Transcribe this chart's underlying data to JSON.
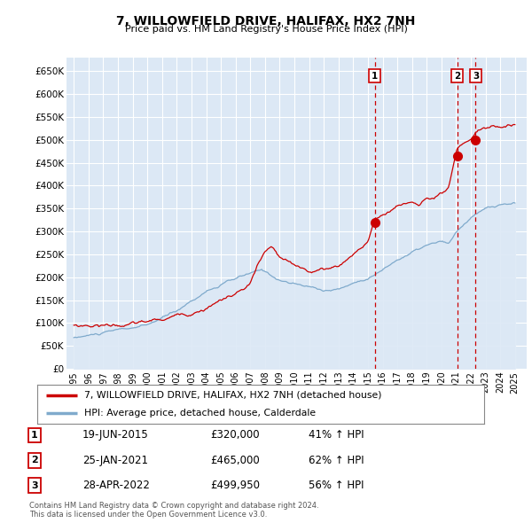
{
  "title": "7, WILLOWFIELD DRIVE, HALIFAX, HX2 7NH",
  "subtitle": "Price paid vs. HM Land Registry's House Price Index (HPI)",
  "ylabel_ticks": [
    "£0",
    "£50K",
    "£100K",
    "£150K",
    "£200K",
    "£250K",
    "£300K",
    "£350K",
    "£400K",
    "£450K",
    "£500K",
    "£550K",
    "£600K",
    "£650K"
  ],
  "ytick_values": [
    0,
    50000,
    100000,
    150000,
    200000,
    250000,
    300000,
    350000,
    400000,
    450000,
    500000,
    550000,
    600000,
    650000
  ],
  "ylim": [
    0,
    680000
  ],
  "legend_entries": [
    "7, WILLOWFIELD DRIVE, HALIFAX, HX2 7NH (detached house)",
    "HPI: Average price, detached house, Calderdale"
  ],
  "legend_colors": [
    "#cc0000",
    "#7faacc"
  ],
  "fill_color": "#dce8f5",
  "transactions": [
    {
      "num": 1,
      "date": "19-JUN-2015",
      "price": 320000,
      "pct": "41%",
      "dir": "↑",
      "x": 2015.46
    },
    {
      "num": 2,
      "date": "25-JAN-2021",
      "price": 465000,
      "pct": "62%",
      "dir": "↑",
      "x": 2021.07
    },
    {
      "num": 3,
      "date": "28-APR-2022",
      "price": 499950,
      "pct": "56%",
      "dir": "↑",
      "x": 2022.33
    }
  ],
  "footer": "Contains HM Land Registry data © Crown copyright and database right 2024.\nThis data is licensed under the Open Government Licence v3.0.",
  "background_color": "#ffffff",
  "plot_bg_color": "#dce8f5",
  "grid_color": "#ffffff",
  "dashed_line_color": "#cc0000"
}
